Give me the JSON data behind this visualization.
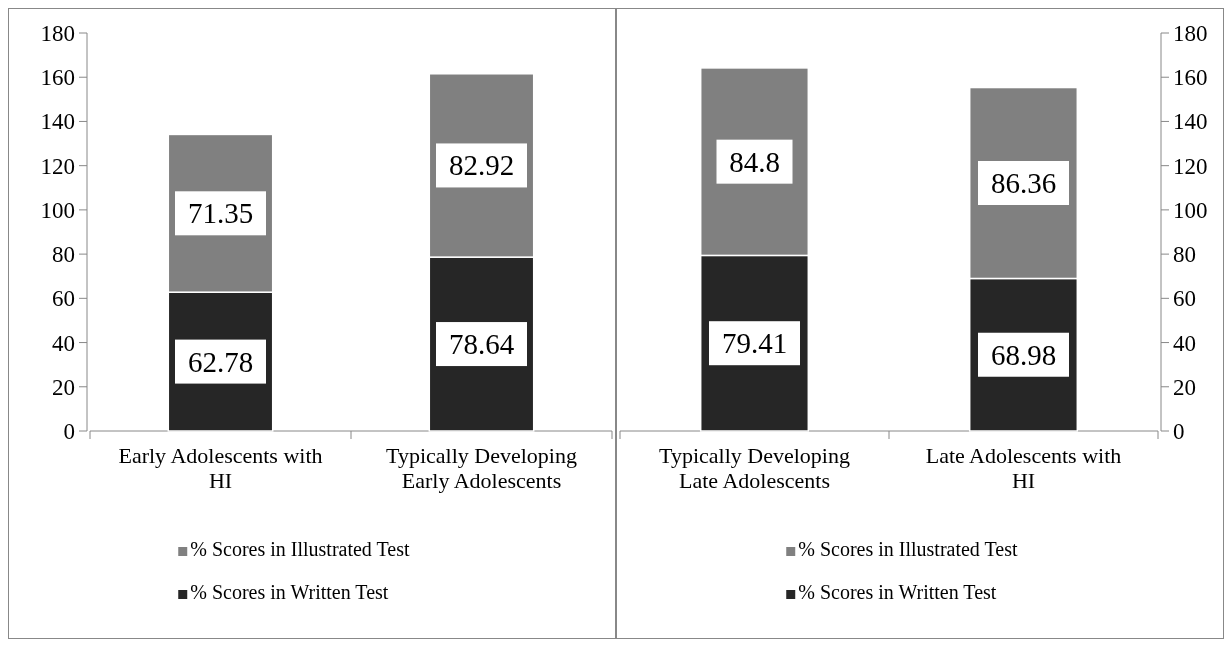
{
  "chart_data": [
    {
      "type": "bar",
      "stacked": true,
      "categories": [
        "Early Adolescents with HI",
        "Typically Developing Early Adolescents"
      ],
      "series": [
        {
          "name": "% Scores in Written Test",
          "color": "#262626",
          "values": [
            62.78,
            78.64
          ]
        },
        {
          "name": "% Scores in Illustrated Test",
          "color": "#808080",
          "values": [
            71.35,
            82.92
          ]
        }
      ],
      "ylim": [
        0,
        180
      ],
      "yticks": [
        0,
        20,
        40,
        60,
        80,
        100,
        120,
        140,
        160,
        180
      ],
      "data_labels": true,
      "legend": "bottom"
    },
    {
      "type": "bar",
      "stacked": true,
      "categories": [
        "Typically Developing Late Adolescents",
        "Late Adolescents with HI"
      ],
      "series": [
        {
          "name": "% Scores in Written Test",
          "color": "#262626",
          "values": [
            79.41,
            68.98
          ],
          "axis": "y2"
        },
        {
          "name": "% Scores in Illustrated Test",
          "color": "#808080",
          "values": [
            84.8,
            86.36
          ],
          "axis": "y2"
        }
      ],
      "y2lim": [
        0,
        180
      ],
      "y2ticks": [
        0,
        20,
        40,
        60,
        80,
        100,
        120,
        140,
        160,
        180
      ],
      "data_labels": true,
      "legend": "bottom"
    }
  ]
}
